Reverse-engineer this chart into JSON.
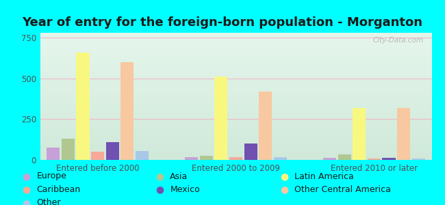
{
  "title": "Year of entry for the foreign-born population - Morganton",
  "groups": [
    "Entered before 2000",
    "Entered 2000 to 2009",
    "Entered 2010 or later"
  ],
  "categories": [
    "Europe",
    "Asia",
    "Latin America",
    "Caribbean",
    "Mexico",
    "Other Central America",
    "Other"
  ],
  "values": {
    "Entered before 2000": [
      75,
      130,
      660,
      50,
      110,
      600,
      55
    ],
    "Entered 2000 to 2009": [
      18,
      25,
      510,
      18,
      100,
      420,
      15
    ],
    "Entered 2010 or later": [
      12,
      35,
      320,
      8,
      12,
      320,
      8
    ]
  },
  "colors": {
    "Europe": "#c8a0d8",
    "Asia": "#b0c890",
    "Latin America": "#f8f880",
    "Caribbean": "#f8a898",
    "Mexico": "#7050b0",
    "Other Central America": "#f8c8a0",
    "Other": "#a8c8e8"
  },
  "ylim": [
    0,
    780
  ],
  "yticks": [
    0,
    250,
    500,
    750
  ],
  "background_color": "#00ffff",
  "plot_bg_top": "#d8ede0",
  "plot_bg_bottom": "#edf8f0",
  "grid_color": "#f0b8c8",
  "title_fontsize": 13,
  "legend_fontsize": 9,
  "tick_fontsize": 8.5,
  "watermark": "City-Data.com",
  "legend_order": [
    "Europe",
    "Asia",
    "Latin America",
    "Caribbean",
    "Mexico",
    "Other Central America",
    "Other"
  ]
}
